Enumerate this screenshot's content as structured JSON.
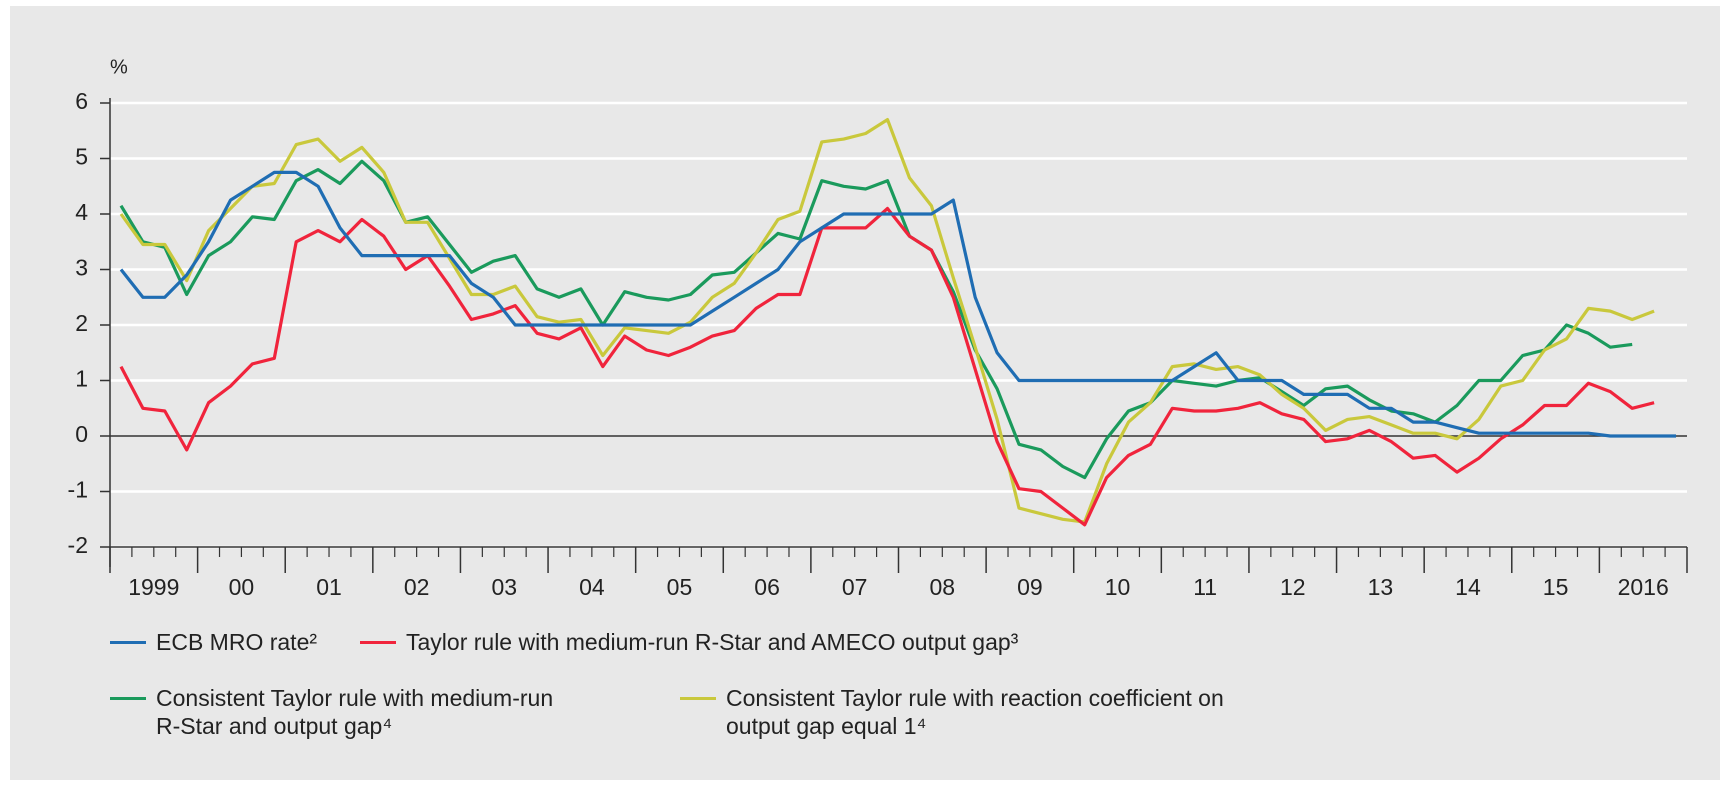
{
  "chart_data": {
    "type": "line",
    "ylabel": "%",
    "x": [
      1999.125,
      1999.375,
      1999.625,
      1999.875,
      2000.125,
      2000.375,
      2000.625,
      2000.875,
      2001.125,
      2001.375,
      2001.625,
      2001.875,
      2002.125,
      2002.375,
      2002.625,
      2002.875,
      2003.125,
      2003.375,
      2003.625,
      2003.875,
      2004.125,
      2004.375,
      2004.625,
      2004.875,
      2005.125,
      2005.375,
      2005.625,
      2005.875,
      2006.125,
      2006.375,
      2006.625,
      2006.875,
      2007.125,
      2007.375,
      2007.625,
      2007.875,
      2008.125,
      2008.375,
      2008.625,
      2008.875,
      2009.125,
      2009.375,
      2009.625,
      2009.875,
      2010.125,
      2010.375,
      2010.625,
      2010.875,
      2011.125,
      2011.375,
      2011.625,
      2011.875,
      2012.125,
      2012.375,
      2012.625,
      2012.875,
      2013.125,
      2013.375,
      2013.625,
      2013.875,
      2014.125,
      2014.375,
      2014.625,
      2014.875,
      2015.125,
      2015.375,
      2015.625,
      2015.875,
      2016.125,
      2016.375,
      2016.625,
      2016.875
    ],
    "series": [
      {
        "name": "ECB MRO rate²",
        "color": "#1f6db3",
        "values": [
          3.0,
          2.5,
          2.5,
          2.9,
          3.5,
          4.25,
          4.5,
          4.75,
          4.75,
          4.5,
          3.75,
          3.25,
          3.25,
          3.25,
          3.25,
          3.25,
          2.75,
          2.5,
          2.0,
          2.0,
          2.0,
          2.0,
          2.0,
          2.0,
          2.0,
          2.0,
          2.0,
          2.25,
          2.5,
          2.75,
          3.0,
          3.5,
          3.75,
          4.0,
          4.0,
          4.0,
          4.0,
          4.0,
          4.25,
          2.5,
          1.5,
          1.0,
          1.0,
          1.0,
          1.0,
          1.0,
          1.0,
          1.0,
          1.0,
          1.25,
          1.5,
          1.0,
          1.0,
          1.0,
          0.75,
          0.75,
          0.75,
          0.5,
          0.5,
          0.25,
          0.25,
          0.15,
          0.05,
          0.05,
          0.05,
          0.05,
          0.05,
          0.05,
          0.0,
          0.0,
          0.0,
          0.0
        ]
      },
      {
        "name": "Taylor rule with medium-run R-Star and AMECO output gap³",
        "color": "#f0243c",
        "values": [
          1.25,
          0.5,
          0.45,
          -0.25,
          0.6,
          0.9,
          1.3,
          1.4,
          3.5,
          3.7,
          3.5,
          3.9,
          3.6,
          3.0,
          3.25,
          2.7,
          2.1,
          2.2,
          2.35,
          1.85,
          1.75,
          1.95,
          1.25,
          1.8,
          1.55,
          1.45,
          1.6,
          1.8,
          1.9,
          2.3,
          2.55,
          2.55,
          3.75,
          3.75,
          3.75,
          4.1,
          3.6,
          3.35,
          2.5,
          1.2,
          -0.1,
          -0.95,
          -1.0,
          -1.3,
          -1.6,
          -0.75,
          -0.35,
          -0.15,
          0.5,
          0.45,
          0.45,
          0.5,
          0.6,
          0.4,
          0.3,
          -0.1,
          -0.05,
          0.1,
          -0.1,
          -0.4,
          -0.35,
          -0.65,
          -0.4,
          -0.05,
          0.2,
          0.55,
          0.55,
          0.95,
          0.8,
          0.5,
          0.6,
          null
        ]
      },
      {
        "name": "Consistent Taylor rule with medium-run R-Star and output gap⁴",
        "color": "#1a9a5c",
        "values": [
          4.15,
          3.5,
          3.4,
          2.55,
          3.25,
          3.5,
          3.95,
          3.9,
          4.6,
          4.8,
          4.55,
          4.95,
          4.6,
          3.85,
          3.95,
          3.45,
          2.95,
          3.15,
          3.25,
          2.65,
          2.5,
          2.65,
          2.0,
          2.6,
          2.5,
          2.45,
          2.55,
          2.9,
          2.95,
          3.3,
          3.65,
          3.55,
          4.6,
          4.5,
          4.45,
          4.6,
          3.6,
          3.35,
          2.6,
          1.55,
          0.85,
          -0.15,
          -0.25,
          -0.55,
          -0.75,
          -0.05,
          0.45,
          0.6,
          1.0,
          0.95,
          0.9,
          1.0,
          1.05,
          0.8,
          0.55,
          0.85,
          0.9,
          0.65,
          0.45,
          0.4,
          0.25,
          0.55,
          1.0,
          1.0,
          1.45,
          1.55,
          2.0,
          1.85,
          1.6,
          1.65,
          null,
          null
        ]
      },
      {
        "name": "Consistent Taylor rule with reaction coefficient on output gap equal 1⁴",
        "color": "#c9c83c",
        "values": [
          4.0,
          3.45,
          3.45,
          2.8,
          3.7,
          4.1,
          4.5,
          4.55,
          5.25,
          5.35,
          4.95,
          5.2,
          4.75,
          3.85,
          3.85,
          3.2,
          2.55,
          2.55,
          2.7,
          2.15,
          2.05,
          2.1,
          1.45,
          1.95,
          1.9,
          1.85,
          2.05,
          2.5,
          2.75,
          3.3,
          3.9,
          4.05,
          5.3,
          5.35,
          5.45,
          5.7,
          4.65,
          4.15,
          2.85,
          1.6,
          0.3,
          -1.3,
          -1.4,
          -1.5,
          -1.55,
          -0.5,
          0.25,
          0.6,
          1.25,
          1.3,
          1.2,
          1.25,
          1.1,
          0.75,
          0.5,
          0.1,
          0.3,
          0.35,
          0.2,
          0.05,
          0.05,
          -0.05,
          0.3,
          0.9,
          1.0,
          1.55,
          1.75,
          2.3,
          2.25,
          2.1,
          2.25,
          null
        ]
      }
    ],
    "xlim": [
      1999,
      2017
    ],
    "xticks": [
      {
        "value": 1999.5,
        "label": "1999"
      },
      {
        "value": 2000.5,
        "label": "00"
      },
      {
        "value": 2001.5,
        "label": "01"
      },
      {
        "value": 2002.5,
        "label": "02"
      },
      {
        "value": 2003.5,
        "label": "03"
      },
      {
        "value": 2004.5,
        "label": "04"
      },
      {
        "value": 2005.5,
        "label": "05"
      },
      {
        "value": 2006.5,
        "label": "06"
      },
      {
        "value": 2007.5,
        "label": "07"
      },
      {
        "value": 2008.5,
        "label": "08"
      },
      {
        "value": 2009.5,
        "label": "09"
      },
      {
        "value": 2010.5,
        "label": "10"
      },
      {
        "value": 2011.5,
        "label": "11"
      },
      {
        "value": 2012.5,
        "label": "12"
      },
      {
        "value": 2013.5,
        "label": "13"
      },
      {
        "value": 2014.5,
        "label": "14"
      },
      {
        "value": 2015.5,
        "label": "15"
      },
      {
        "value": 2016.5,
        "label": "2016"
      }
    ],
    "ylim": [
      -2,
      6
    ],
    "yticks": [
      -2,
      -1,
      0,
      1,
      2,
      3,
      4,
      5,
      6
    ],
    "grid": true
  }
}
